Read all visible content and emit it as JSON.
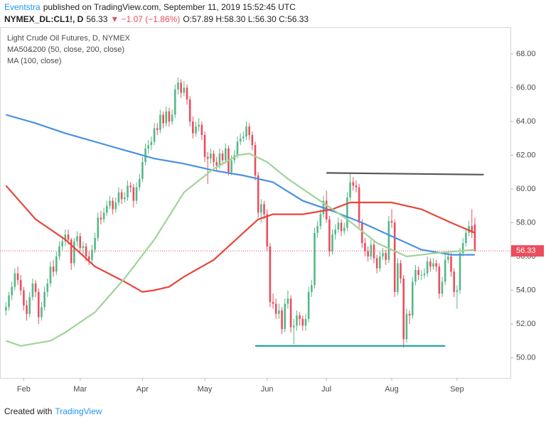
{
  "header": {
    "author": "Eventstra",
    "published": "published on TradingView.com, September 11, 2019 15:52:45 UTC",
    "symbol": "NYMEX_DL:CL1!, D",
    "last": "56.33",
    "change": "▼ −1.07 (−1.86%)",
    "ohlc": "O:57.89 H:58.30 L:56.30 C:56.33"
  },
  "footer": {
    "prefix": "Created with",
    "brand": "TradingView"
  },
  "chart_data": {
    "type": "candlestick",
    "legend": [
      "Light Crude Oil Futures, D, NYMEX",
      "MA50&200 (50, close, 200, close)",
      "MA (100, close)"
    ],
    "up_color": "#53b987",
    "down_color": "#eb4d5c",
    "xlim": [
      -2,
      170
    ],
    "ylim": [
      48.8,
      69.6
    ],
    "xticks": [
      {
        "value": 6,
        "label": "Feb"
      },
      {
        "value": 25,
        "label": "Mar"
      },
      {
        "value": 46,
        "label": "Apr"
      },
      {
        "value": 67,
        "label": "May"
      },
      {
        "value": 88,
        "label": "Jun"
      },
      {
        "value": 108,
        "label": "Jul"
      },
      {
        "value": 130,
        "label": "Aug"
      },
      {
        "value": 152,
        "label": "Sep"
      }
    ],
    "yticks": [
      {
        "value": 50,
        "label": "50.00"
      },
      {
        "value": 52,
        "label": "52.00"
      },
      {
        "value": 54,
        "label": "54.00"
      },
      {
        "value": 56,
        "label": "56.00"
      },
      {
        "value": 58,
        "label": "58.00"
      },
      {
        "value": 60,
        "label": "60.00"
      },
      {
        "value": 62,
        "label": "62.00"
      },
      {
        "value": 64,
        "label": "64.00"
      },
      {
        "value": 66,
        "label": "66.00"
      },
      {
        "value": 68,
        "label": "68.00"
      }
    ],
    "grid": false,
    "ohlc": [
      [
        52.8,
        53.3,
        52.5,
        53.0
      ],
      [
        53.0,
        53.9,
        52.8,
        53.7
      ],
      [
        53.7,
        54.5,
        53.4,
        54.2
      ],
      [
        54.2,
        55.3,
        54.0,
        55.0
      ],
      [
        55.0,
        55.4,
        54.3,
        54.6
      ],
      [
        54.6,
        54.9,
        53.7,
        54.0
      ],
      [
        54.0,
        54.2,
        52.8,
        53.1
      ],
      [
        53.1,
        53.4,
        52.2,
        52.6
      ],
      [
        52.6,
        53.9,
        52.4,
        53.6
      ],
      [
        53.6,
        54.7,
        53.4,
        54.4
      ],
      [
        54.4,
        54.6,
        53.6,
        53.9
      ],
      [
        53.9,
        54.1,
        52.0,
        52.4
      ],
      [
        52.4,
        53.3,
        52.2,
        53.0
      ],
      [
        53.0,
        54.2,
        52.8,
        53.9
      ],
      [
        53.9,
        54.7,
        53.6,
        54.4
      ],
      [
        54.4,
        55.7,
        54.2,
        55.4
      ],
      [
        55.4,
        55.8,
        54.8,
        55.1
      ],
      [
        55.1,
        56.3,
        54.9,
        56.0
      ],
      [
        56.0,
        56.9,
        55.8,
        56.6
      ],
      [
        56.6,
        57.2,
        56.3,
        56.9
      ],
      [
        56.9,
        57.6,
        56.6,
        57.3
      ],
      [
        57.3,
        57.6,
        56.7,
        57.0
      ],
      [
        57.0,
        57.1,
        55.2,
        55.6
      ],
      [
        55.6,
        57.1,
        55.4,
        56.9
      ],
      [
        56.9,
        57.5,
        56.6,
        57.2
      ],
      [
        57.2,
        57.4,
        56.2,
        56.5
      ],
      [
        56.5,
        56.9,
        56.1,
        56.6
      ],
      [
        56.6,
        56.8,
        55.7,
        56.0
      ],
      [
        56.0,
        56.3,
        55.5,
        55.8
      ],
      [
        55.8,
        56.7,
        55.6,
        56.4
      ],
      [
        56.4,
        57.4,
        56.2,
        57.1
      ],
      [
        57.1,
        58.6,
        56.9,
        58.3
      ],
      [
        58.3,
        58.7,
        57.9,
        58.2
      ],
      [
        58.2,
        58.9,
        58.0,
        58.6
      ],
      [
        58.6,
        59.3,
        58.4,
        59.0
      ],
      [
        59.0,
        59.6,
        58.8,
        59.3
      ],
      [
        59.3,
        59.5,
        58.5,
        58.8
      ],
      [
        58.8,
        59.5,
        58.6,
        59.2
      ],
      [
        59.2,
        60.1,
        59.0,
        59.8
      ],
      [
        59.8,
        60.0,
        59.1,
        59.4
      ],
      [
        59.4,
        59.8,
        59.2,
        59.5
      ],
      [
        59.5,
        60.5,
        59.3,
        60.2
      ],
      [
        60.2,
        60.4,
        59.8,
        60.1
      ],
      [
        60.1,
        60.3,
        58.9,
        59.3
      ],
      [
        59.3,
        60.4,
        59.1,
        60.1
      ],
      [
        60.1,
        60.9,
        59.9,
        60.6
      ],
      [
        60.6,
        61.9,
        60.4,
        61.6
      ],
      [
        61.6,
        62.7,
        61.4,
        62.4
      ],
      [
        62.4,
        62.9,
        62.1,
        62.6
      ],
      [
        62.6,
        63.1,
        62.3,
        62.8
      ],
      [
        62.8,
        63.9,
        62.6,
        63.6
      ],
      [
        63.6,
        63.9,
        63.2,
        63.5
      ],
      [
        63.5,
        64.7,
        63.3,
        64.4
      ],
      [
        64.4,
        64.6,
        63.6,
        63.9
      ],
      [
        63.9,
        64.9,
        63.7,
        64.6
      ],
      [
        64.6,
        64.8,
        63.7,
        64.0
      ],
      [
        64.0,
        64.7,
        63.8,
        64.4
      ],
      [
        64.4,
        66.2,
        64.2,
        65.9
      ],
      [
        65.9,
        66.6,
        65.6,
        66.3
      ],
      [
        66.3,
        66.5,
        65.4,
        65.7
      ],
      [
        65.7,
        66.4,
        65.5,
        66.0
      ],
      [
        66.0,
        66.2,
        65.0,
        65.3
      ],
      [
        65.3,
        65.5,
        63.7,
        64.0
      ],
      [
        64.0,
        64.3,
        63.0,
        63.3
      ],
      [
        63.3,
        64.0,
        63.1,
        63.7
      ],
      [
        63.7,
        64.2,
        63.4,
        63.8
      ],
      [
        63.8,
        64.0,
        62.9,
        63.2
      ],
      [
        63.2,
        63.4,
        61.6,
        61.9
      ],
      [
        61.9,
        62.2,
        60.3,
        61.8
      ],
      [
        61.8,
        62.4,
        61.5,
        62.1
      ],
      [
        62.1,
        62.3,
        61.3,
        61.6
      ],
      [
        61.6,
        61.9,
        61.1,
        61.4
      ],
      [
        61.4,
        62.4,
        61.2,
        62.1
      ],
      [
        62.1,
        62.3,
        61.4,
        61.7
      ],
      [
        61.7,
        62.7,
        61.5,
        62.4
      ],
      [
        62.4,
        62.6,
        60.8,
        61.0
      ],
      [
        61.0,
        62.0,
        60.8,
        61.7
      ],
      [
        61.7,
        62.3,
        61.5,
        62.0
      ],
      [
        62.0,
        63.1,
        61.8,
        62.8
      ],
      [
        62.8,
        63.3,
        62.6,
        63.0
      ],
      [
        63.0,
        63.4,
        62.8,
        63.1
      ],
      [
        63.1,
        64.0,
        62.9,
        63.7
      ],
      [
        63.7,
        63.9,
        62.9,
        63.2
      ],
      [
        63.2,
        63.4,
        62.3,
        62.6
      ],
      [
        62.6,
        62.8,
        60.5,
        60.8
      ],
      [
        60.8,
        61.0,
        58.3,
        58.6
      ],
      [
        58.6,
        59.4,
        58.0,
        59.1
      ],
      [
        59.1,
        59.3,
        58.2,
        58.5
      ],
      [
        58.5,
        58.8,
        56.3,
        56.6
      ],
      [
        56.6,
        56.8,
        53.0,
        53.3
      ],
      [
        53.3,
        53.8,
        52.9,
        53.2
      ],
      [
        53.2,
        53.5,
        52.3,
        52.6
      ],
      [
        52.6,
        53.2,
        52.3,
        52.8
      ],
      [
        52.8,
        53.0,
        51.4,
        51.7
      ],
      [
        51.7,
        53.5,
        51.5,
        53.2
      ],
      [
        53.2,
        54.0,
        52.9,
        53.5
      ],
      [
        53.5,
        53.7,
        51.5,
        51.8
      ],
      [
        51.8,
        52.3,
        50.8,
        51.9
      ],
      [
        51.9,
        52.8,
        51.6,
        52.5
      ],
      [
        52.5,
        52.7,
        51.9,
        52.3
      ],
      [
        52.3,
        52.5,
        51.6,
        51.9
      ],
      [
        51.9,
        52.6,
        51.6,
        52.3
      ],
      [
        52.3,
        54.2,
        52.1,
        53.9
      ],
      [
        53.9,
        54.6,
        53.6,
        54.3
      ],
      [
        54.3,
        57.7,
        54.1,
        57.4
      ],
      [
        57.4,
        58.1,
        57.1,
        57.8
      ],
      [
        57.8,
        58.8,
        57.6,
        58.5
      ],
      [
        58.5,
        59.6,
        58.3,
        59.3
      ],
      [
        59.3,
        59.9,
        58.0,
        58.2
      ],
      [
        58.2,
        58.4,
        56.0,
        56.3
      ],
      [
        56.3,
        57.6,
        56.1,
        57.3
      ],
      [
        57.3,
        57.9,
        57.0,
        57.6
      ],
      [
        57.6,
        58.3,
        57.4,
        58.0
      ],
      [
        58.0,
        58.2,
        57.2,
        57.5
      ],
      [
        57.5,
        58.0,
        57.3,
        57.7
      ],
      [
        57.7,
        59.8,
        57.5,
        59.5
      ],
      [
        59.5,
        60.9,
        59.3,
        60.4
      ],
      [
        60.4,
        60.7,
        59.9,
        60.2
      ],
      [
        60.2,
        60.5,
        59.8,
        60.1
      ],
      [
        60.1,
        60.3,
        57.7,
        58.0
      ],
      [
        58.0,
        58.2,
        56.5,
        56.8
      ],
      [
        56.8,
        57.1,
        56.0,
        56.3
      ],
      [
        56.3,
        56.6,
        55.7,
        56.0
      ],
      [
        56.0,
        57.0,
        55.8,
        56.7
      ],
      [
        56.7,
        56.9,
        55.6,
        55.9
      ],
      [
        55.9,
        56.1,
        55.0,
        55.3
      ],
      [
        55.3,
        56.3,
        55.1,
        56.0
      ],
      [
        56.0,
        56.5,
        55.8,
        56.2
      ],
      [
        56.2,
        56.4,
        55.5,
        55.8
      ],
      [
        55.8,
        58.4,
        55.6,
        58.1
      ],
      [
        58.1,
        58.8,
        57.7,
        58.0
      ],
      [
        58.0,
        58.2,
        53.6,
        53.9
      ],
      [
        53.9,
        55.9,
        53.7,
        55.6
      ],
      [
        55.6,
        55.8,
        54.4,
        54.7
      ],
      [
        54.7,
        54.9,
        50.6,
        51.1
      ],
      [
        51.1,
        52.9,
        50.9,
        52.6
      ],
      [
        52.6,
        52.8,
        52.0,
        52.5
      ],
      [
        52.5,
        54.8,
        52.3,
        54.5
      ],
      [
        54.5,
        55.5,
        54.3,
        55.2
      ],
      [
        55.2,
        55.4,
        54.6,
        54.9
      ],
      [
        54.9,
        55.2,
        54.6,
        54.9
      ],
      [
        54.9,
        55.3,
        54.7,
        55.0
      ],
      [
        55.0,
        56.0,
        54.8,
        55.7
      ],
      [
        55.7,
        55.9,
        55.1,
        55.4
      ],
      [
        55.4,
        55.9,
        55.2,
        55.6
      ],
      [
        55.6,
        55.8,
        55.1,
        55.4
      ],
      [
        55.4,
        55.6,
        53.5,
        53.8
      ],
      [
        53.8,
        54.8,
        53.6,
        54.5
      ],
      [
        54.5,
        56.1,
        54.3,
        55.8
      ],
      [
        55.8,
        56.3,
        55.6,
        56.0
      ],
      [
        56.0,
        56.2,
        54.8,
        55.1
      ],
      [
        55.1,
        55.3,
        53.6,
        53.9
      ],
      [
        53.9,
        54.3,
        52.9,
        54.0
      ],
      [
        54.0,
        56.5,
        53.8,
        56.2
      ],
      [
        56.2,
        57.1,
        56.0,
        56.8
      ],
      [
        56.8,
        57.7,
        56.6,
        57.4
      ],
      [
        57.4,
        58.1,
        57.2,
        57.8
      ],
      [
        57.8,
        58.8,
        57.1,
        57.4
      ],
      [
        57.89,
        58.3,
        56.3,
        56.33
      ]
    ],
    "series": [
      {
        "color": "#4a90e2",
        "x": [
          0,
          10,
          20,
          30,
          40,
          50,
          60,
          70,
          80,
          90,
          100,
          110,
          120,
          130,
          140,
          150,
          158
        ],
        "values": [
          64.4,
          63.9,
          63.3,
          62.8,
          62.3,
          61.8,
          61.5,
          61.1,
          60.8,
          60.4,
          59.3,
          58.7,
          58.0,
          57.2,
          56.4,
          56.1,
          56.1
        ]
      },
      {
        "color": "#e8453c",
        "x": [
          0,
          10,
          20,
          30,
          40,
          46,
          50,
          55,
          60,
          70,
          80,
          85,
          90,
          100,
          110,
          116,
          130,
          140,
          150,
          158
        ],
        "values": [
          60.2,
          58.2,
          57.0,
          55.4,
          54.5,
          53.9,
          54.0,
          54.2,
          54.8,
          55.8,
          57.4,
          58.2,
          58.5,
          58.5,
          58.8,
          59.2,
          59.2,
          58.8,
          58.0,
          57.4
        ]
      },
      {
        "color": "#9fd49a",
        "x": [
          0,
          5,
          15,
          20,
          30,
          40,
          50,
          60,
          70,
          78,
          82,
          88,
          95,
          105,
          115,
          125,
          135,
          145,
          158
        ],
        "values": [
          51.0,
          50.7,
          51.0,
          51.5,
          52.7,
          54.7,
          57.0,
          59.8,
          61.2,
          62.0,
          62.1,
          61.6,
          60.6,
          59.4,
          58.2,
          56.8,
          56.0,
          56.2,
          56.4
        ]
      }
    ],
    "lines": [
      {
        "color": "#555555",
        "x": [
          108,
          161
        ],
        "values": [
          60.95,
          60.85
        ]
      },
      {
        "color": "#26a69a",
        "x": [
          84,
          148
        ],
        "values": [
          50.7,
          50.7
        ]
      }
    ]
  }
}
